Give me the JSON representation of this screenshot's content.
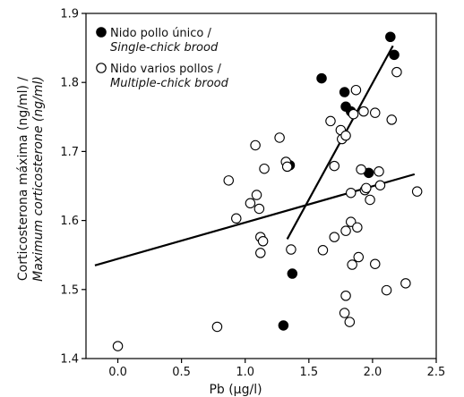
{
  "chart_data": {
    "type": "scatter",
    "xlabel": "Pb (µg/l)",
    "ylabel_line1": "Corticosterona máxima (ng/ml) /",
    "ylabel_line2": "Maximum corticosterone (ng/ml)",
    "xlim": [
      -0.25,
      2.5
    ],
    "ylim": [
      1.4,
      1.9
    ],
    "xticks": [
      0.0,
      0.5,
      1.0,
      1.5,
      2.0,
      2.5
    ],
    "xtick_labels": [
      "0.0",
      "0.5",
      "1.0",
      "1.5",
      "2.0",
      "2.5"
    ],
    "yticks": [
      1.4,
      1.5,
      1.6,
      1.7,
      1.8,
      1.9
    ],
    "ytick_labels": [
      "1.4",
      "1.5",
      "1.6",
      "1.7",
      "1.8",
      "1.9"
    ],
    "legend_position": "top-left",
    "series": [
      {
        "name_line1": "Nido pollo único /",
        "name_line2": "Single-chick brood",
        "marker": "filled-circle",
        "color": "#000000",
        "points": [
          [
            1.3,
            1.448
          ],
          [
            1.35,
            1.68
          ],
          [
            1.37,
            1.523
          ],
          [
            1.6,
            1.806
          ],
          [
            1.78,
            1.786
          ],
          [
            1.79,
            1.765
          ],
          [
            1.83,
            1.758
          ],
          [
            1.97,
            1.669
          ],
          [
            2.14,
            1.866
          ],
          [
            2.17,
            1.84
          ]
        ],
        "trend_line": [
          [
            1.33,
            1.573
          ],
          [
            2.16,
            1.853
          ]
        ]
      },
      {
        "name_line1": "Nido varios pollos /",
        "name_line2": "Multiple-chick brood",
        "marker": "open-circle",
        "color": "#000000",
        "points": [
          [
            0.0,
            1.418
          ],
          [
            0.78,
            1.446
          ],
          [
            0.87,
            1.658
          ],
          [
            0.93,
            1.603
          ],
          [
            1.04,
            1.625
          ],
          [
            1.08,
            1.709
          ],
          [
            1.09,
            1.637
          ],
          [
            1.11,
            1.617
          ],
          [
            1.12,
            1.576
          ],
          [
            1.12,
            1.553
          ],
          [
            1.14,
            1.57
          ],
          [
            1.15,
            1.675
          ],
          [
            1.27,
            1.72
          ],
          [
            1.32,
            1.685
          ],
          [
            1.33,
            1.678
          ],
          [
            1.36,
            1.558
          ],
          [
            1.61,
            1.557
          ],
          [
            1.67,
            1.744
          ],
          [
            1.7,
            1.679
          ],
          [
            1.7,
            1.576
          ],
          [
            1.75,
            1.731
          ],
          [
            1.76,
            1.718
          ],
          [
            1.79,
            1.723
          ],
          [
            1.79,
            1.585
          ],
          [
            1.79,
            1.491
          ],
          [
            1.78,
            1.466
          ],
          [
            1.82,
            1.453
          ],
          [
            1.83,
            1.64
          ],
          [
            1.83,
            1.598
          ],
          [
            1.84,
            1.536
          ],
          [
            1.85,
            1.754
          ],
          [
            1.87,
            1.789
          ],
          [
            1.88,
            1.59
          ],
          [
            1.89,
            1.547
          ],
          [
            1.91,
            1.674
          ],
          [
            1.93,
            1.758
          ],
          [
            1.94,
            1.644
          ],
          [
            1.95,
            1.647
          ],
          [
            1.98,
            1.63
          ],
          [
            2.02,
            1.537
          ],
          [
            2.02,
            1.756
          ],
          [
            2.05,
            1.671
          ],
          [
            2.06,
            1.651
          ],
          [
            2.11,
            1.499
          ],
          [
            2.15,
            1.746
          ],
          [
            2.19,
            1.815
          ],
          [
            2.26,
            1.509
          ],
          [
            2.35,
            1.642
          ]
        ],
        "trend_line": [
          [
            -0.18,
            1.535
          ],
          [
            2.33,
            1.667
          ]
        ]
      }
    ]
  }
}
